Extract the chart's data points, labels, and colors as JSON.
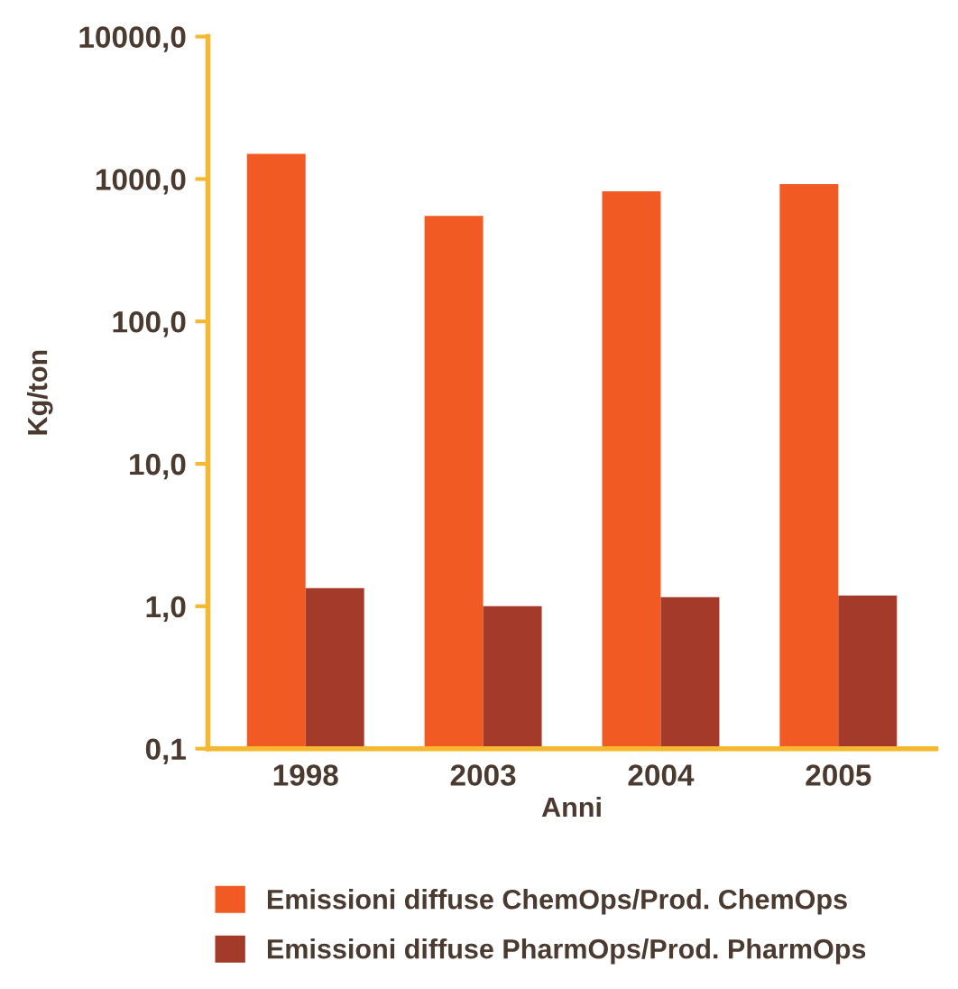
{
  "chart_data": {
    "type": "bar",
    "xlabel": "Anni",
    "ylabel": "Kg/ton",
    "categories": [
      "1998",
      "2003",
      "2004",
      "2005"
    ],
    "series": [
      {
        "name": "Emissioni diffuse ChemOps/Prod. ChemOps",
        "color": "#f15a22",
        "values": [
          1500,
          550,
          820,
          920
        ]
      },
      {
        "name": "Emissioni diffuse PharmOps/Prod. PharmOps",
        "color": "#a33a2a",
        "values": [
          1.34,
          1.0,
          1.16,
          1.19
        ]
      }
    ],
    "log": true,
    "ylim": [
      0.1,
      10000
    ],
    "yticks": [
      {
        "value": 0.1,
        "label": "0,1"
      },
      {
        "value": 1,
        "label": "1,0"
      },
      {
        "value": 10,
        "label": "10,0"
      },
      {
        "value": 100,
        "label": "100,0"
      },
      {
        "value": 1000,
        "label": "1000,0"
      },
      {
        "value": 10000,
        "label": "10000,0"
      }
    ],
    "grid": false,
    "legend": "bottom"
  }
}
